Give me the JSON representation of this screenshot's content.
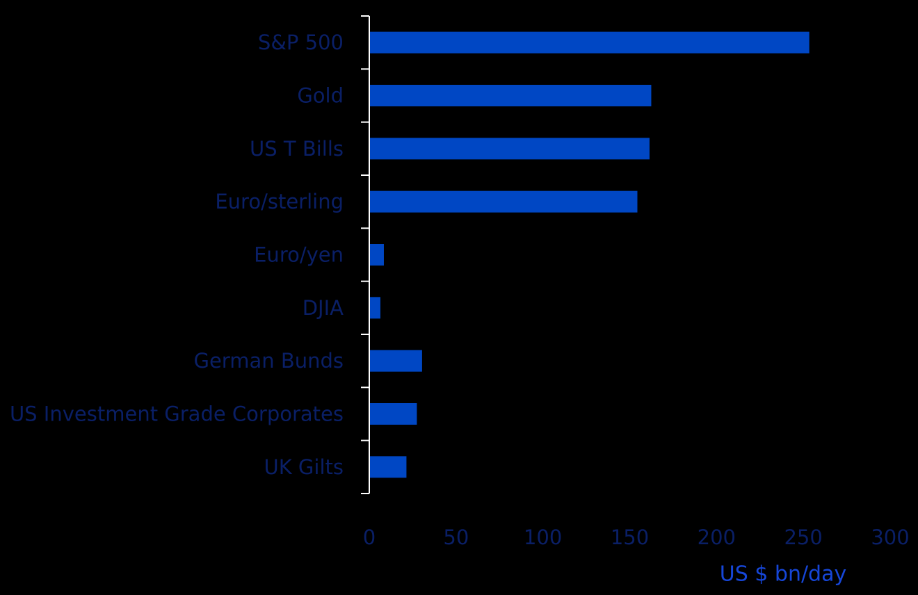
{
  "chart_data": {
    "type": "bar",
    "orientation": "horizontal",
    "categories": [
      "S&P 500",
      "Gold",
      "US T Bills",
      "Euro/sterling",
      "Euro/yen",
      "DJIA",
      "German Bunds",
      "US Investment Grade Corporates",
      "UK Gilts"
    ],
    "values": [
      253,
      162,
      161,
      154,
      8,
      6,
      30,
      27,
      21
    ],
    "xlabel": "US $ bn/day",
    "ylabel": "",
    "xlim": [
      0,
      300
    ],
    "xticks": [
      0,
      50,
      100,
      150,
      200,
      250,
      300
    ],
    "grid": false,
    "legend": "none"
  },
  "colors": {
    "background": "#000000",
    "bar": "#0047c4",
    "label_text": "#0a1f66",
    "axis_title": "#1646d8",
    "axis_line": "#ffffff"
  }
}
